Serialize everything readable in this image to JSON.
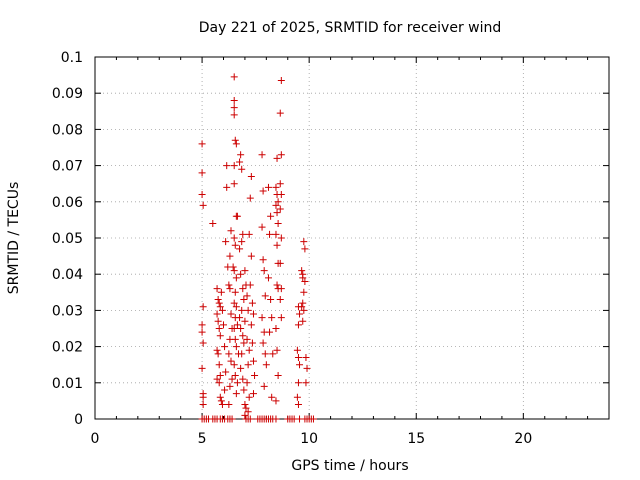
{
  "chart_data": {
    "type": "scatter",
    "title": "Day 221 of 2025, SRMTID for receiver wind",
    "xlabel": "GPS time / hours",
    "ylabel": "SRMTID / TECUs",
    "xlim": [
      0,
      24
    ],
    "ylim": [
      0,
      0.1
    ],
    "x_ticks": [
      0,
      5,
      10,
      15,
      20
    ],
    "x_tick_labels": [
      "0",
      "5",
      "10",
      "15",
      "20"
    ],
    "y_ticks": [
      0,
      0.01,
      0.02,
      0.03,
      0.04,
      0.05,
      0.06,
      0.07,
      0.08,
      0.09,
      0.1
    ],
    "y_tick_labels": [
      "0",
      "0.01",
      "0.02",
      "0.03",
      "0.04",
      "0.05",
      "0.06",
      "0.07",
      "0.08",
      "0.09",
      "0.1"
    ],
    "grid": true,
    "marker": "+",
    "color": "#cc0000",
    "series": [
      {
        "name": "SRMTID",
        "points": [
          [
            5.0,
            0.076
          ],
          [
            5.0,
            0.068
          ],
          [
            5.0,
            0.062
          ],
          [
            5.05,
            0.059
          ],
          [
            5.05,
            0.031
          ],
          [
            5.0,
            0.026
          ],
          [
            5.0,
            0.024
          ],
          [
            5.05,
            0.021
          ],
          [
            5.0,
            0.014
          ],
          [
            5.05,
            0.007
          ],
          [
            5.05,
            0.006
          ],
          [
            5.05,
            0.004
          ],
          [
            5.0,
            0.0
          ],
          [
            5.1,
            0.0
          ],
          [
            5.2,
            0.0
          ],
          [
            5.3,
            0.0
          ],
          [
            5.5,
            0.0
          ],
          [
            5.6,
            0.0
          ],
          [
            5.7,
            0.0
          ],
          [
            5.85,
            0.0
          ],
          [
            5.95,
            0.0
          ],
          [
            6.05,
            0.0
          ],
          [
            6.2,
            0.0
          ],
          [
            6.3,
            0.0
          ],
          [
            6.4,
            0.0
          ],
          [
            5.5,
            0.054
          ],
          [
            5.7,
            0.036
          ],
          [
            5.75,
            0.033
          ],
          [
            5.8,
            0.032
          ],
          [
            5.85,
            0.031
          ],
          [
            5.7,
            0.029
          ],
          [
            5.75,
            0.027
          ],
          [
            5.8,
            0.025
          ],
          [
            5.85,
            0.023
          ],
          [
            5.7,
            0.019
          ],
          [
            5.75,
            0.018
          ],
          [
            5.8,
            0.015
          ],
          [
            5.85,
            0.012
          ],
          [
            5.7,
            0.011
          ],
          [
            5.8,
            0.01
          ],
          [
            5.85,
            0.006
          ],
          [
            5.9,
            0.005
          ],
          [
            5.95,
            0.004
          ],
          [
            5.9,
            0.035
          ],
          [
            5.95,
            0.03
          ],
          [
            6.0,
            0.026
          ],
          [
            6.05,
            0.02
          ],
          [
            6.1,
            0.013
          ],
          [
            6.05,
            0.008
          ],
          [
            6.1,
            0.049
          ],
          [
            6.15,
            0.064
          ],
          [
            6.15,
            0.07
          ],
          [
            6.2,
            0.042
          ],
          [
            6.25,
            0.037
          ],
          [
            6.3,
            0.045
          ],
          [
            6.35,
            0.052
          ],
          [
            6.3,
            0.036
          ],
          [
            6.35,
            0.029
          ],
          [
            6.4,
            0.025
          ],
          [
            6.3,
            0.022
          ],
          [
            6.25,
            0.018
          ],
          [
            6.35,
            0.016
          ],
          [
            6.4,
            0.011
          ],
          [
            6.3,
            0.009
          ],
          [
            6.25,
            0.004
          ],
          [
            6.5,
            0.0945
          ],
          [
            6.5,
            0.088
          ],
          [
            6.5,
            0.086
          ],
          [
            6.5,
            0.084
          ],
          [
            6.55,
            0.077
          ],
          [
            6.6,
            0.076
          ],
          [
            6.5,
            0.07
          ],
          [
            6.5,
            0.065
          ],
          [
            6.6,
            0.056
          ],
          [
            6.65,
            0.056
          ],
          [
            6.5,
            0.05
          ],
          [
            6.55,
            0.048
          ],
          [
            6.45,
            0.042
          ],
          [
            6.5,
            0.041
          ],
          [
            6.6,
            0.039
          ],
          [
            6.55,
            0.035
          ],
          [
            6.5,
            0.032
          ],
          [
            6.6,
            0.031
          ],
          [
            6.55,
            0.028
          ],
          [
            6.65,
            0.026
          ],
          [
            6.5,
            0.025
          ],
          [
            6.55,
            0.022
          ],
          [
            6.6,
            0.02
          ],
          [
            6.7,
            0.018
          ],
          [
            6.5,
            0.015
          ],
          [
            6.55,
            0.012
          ],
          [
            6.65,
            0.01
          ],
          [
            6.6,
            0.007
          ],
          [
            6.8,
            0.073
          ],
          [
            6.75,
            0.071
          ],
          [
            6.85,
            0.069
          ],
          [
            6.9,
            0.051
          ],
          [
            6.85,
            0.049
          ],
          [
            6.75,
            0.047
          ],
          [
            6.8,
            0.04
          ],
          [
            6.9,
            0.036
          ],
          [
            6.95,
            0.033
          ],
          [
            6.85,
            0.03
          ],
          [
            6.75,
            0.028
          ],
          [
            6.8,
            0.025
          ],
          [
            6.9,
            0.023
          ],
          [
            6.95,
            0.021
          ],
          [
            6.85,
            0.018
          ],
          [
            6.8,
            0.014
          ],
          [
            6.9,
            0.011
          ],
          [
            6.95,
            0.008
          ],
          [
            7.0,
            0.004
          ],
          [
            7.05,
            0.003
          ],
          [
            7.0,
            0.001
          ],
          [
            7.05,
            0.0
          ],
          [
            7.15,
            0.0
          ],
          [
            7.25,
            0.0
          ],
          [
            7.0,
            0.041
          ],
          [
            7.05,
            0.037
          ],
          [
            7.1,
            0.034
          ],
          [
            7.15,
            0.03
          ],
          [
            7.0,
            0.027
          ],
          [
            7.1,
            0.022
          ],
          [
            7.2,
            0.019
          ],
          [
            7.15,
            0.015
          ],
          [
            7.1,
            0.01
          ],
          [
            7.2,
            0.006
          ],
          [
            7.15,
            0.002
          ],
          [
            7.3,
            0.067
          ],
          [
            7.25,
            0.061
          ],
          [
            7.2,
            0.051
          ],
          [
            7.3,
            0.045
          ],
          [
            7.25,
            0.037
          ],
          [
            7.35,
            0.032
          ],
          [
            7.4,
            0.029
          ],
          [
            7.3,
            0.026
          ],
          [
            7.35,
            0.021
          ],
          [
            7.4,
            0.016
          ],
          [
            7.45,
            0.012
          ],
          [
            7.4,
            0.007
          ],
          [
            7.6,
            0.0
          ],
          [
            7.7,
            0.0
          ],
          [
            7.8,
            0.0
          ],
          [
            7.9,
            0.0
          ],
          [
            8.0,
            0.0
          ],
          [
            8.1,
            0.0
          ],
          [
            8.2,
            0.0
          ],
          [
            8.3,
            0.0
          ],
          [
            8.45,
            0.0
          ],
          [
            7.8,
            0.073
          ],
          [
            7.85,
            0.063
          ],
          [
            7.8,
            0.053
          ],
          [
            7.85,
            0.044
          ],
          [
            7.9,
            0.041
          ],
          [
            7.95,
            0.034
          ],
          [
            7.8,
            0.028
          ],
          [
            7.9,
            0.024
          ],
          [
            7.85,
            0.021
          ],
          [
            7.95,
            0.018
          ],
          [
            8.0,
            0.015
          ],
          [
            7.9,
            0.009
          ],
          [
            8.1,
            0.064
          ],
          [
            8.2,
            0.056
          ],
          [
            8.15,
            0.051
          ],
          [
            8.1,
            0.039
          ],
          [
            8.2,
            0.033
          ],
          [
            8.25,
            0.028
          ],
          [
            8.15,
            0.024
          ],
          [
            8.3,
            0.018
          ],
          [
            8.25,
            0.006
          ],
          [
            8.5,
            0.072
          ],
          [
            8.45,
            0.064
          ],
          [
            8.5,
            0.062
          ],
          [
            8.55,
            0.06
          ],
          [
            8.45,
            0.059
          ],
          [
            8.5,
            0.057
          ],
          [
            8.55,
            0.054
          ],
          [
            8.45,
            0.051
          ],
          [
            8.5,
            0.048
          ],
          [
            8.55,
            0.043
          ],
          [
            8.5,
            0.037
          ],
          [
            8.55,
            0.036
          ],
          [
            8.45,
            0.025
          ],
          [
            8.5,
            0.019
          ],
          [
            8.55,
            0.012
          ],
          [
            8.45,
            0.005
          ],
          [
            8.7,
            0.0935
          ],
          [
            8.65,
            0.0845
          ],
          [
            8.7,
            0.073
          ],
          [
            8.65,
            0.065
          ],
          [
            8.7,
            0.062
          ],
          [
            8.65,
            0.058
          ],
          [
            8.7,
            0.05
          ],
          [
            8.65,
            0.043
          ],
          [
            8.7,
            0.036
          ],
          [
            8.65,
            0.033
          ],
          [
            8.7,
            0.028
          ],
          [
            9.0,
            0.0
          ],
          [
            9.1,
            0.0
          ],
          [
            9.2,
            0.0
          ],
          [
            9.3,
            0.0
          ],
          [
            9.5,
            0.031
          ],
          [
            9.55,
            0.029
          ],
          [
            9.5,
            0.026
          ],
          [
            9.45,
            0.019
          ],
          [
            9.5,
            0.017
          ],
          [
            9.55,
            0.015
          ],
          [
            9.5,
            0.01
          ],
          [
            9.45,
            0.006
          ],
          [
            9.5,
            0.004
          ],
          [
            9.55,
            0.0
          ],
          [
            9.65,
            0.041
          ],
          [
            9.7,
            0.039
          ],
          [
            9.75,
            0.035
          ],
          [
            9.7,
            0.032
          ],
          [
            9.65,
            0.031
          ],
          [
            9.75,
            0.03
          ],
          [
            9.7,
            0.027
          ],
          [
            9.75,
            0.049
          ],
          [
            9.8,
            0.047
          ],
          [
            9.7,
            0.04
          ],
          [
            9.8,
            0.038
          ],
          [
            9.85,
            0.017
          ],
          [
            9.9,
            0.014
          ],
          [
            9.85,
            0.01
          ],
          [
            9.8,
            0.0
          ],
          [
            9.9,
            0.0
          ],
          [
            10.0,
            0.0
          ],
          [
            10.1,
            0.0
          ],
          [
            10.2,
            0.0
          ]
        ]
      }
    ]
  }
}
